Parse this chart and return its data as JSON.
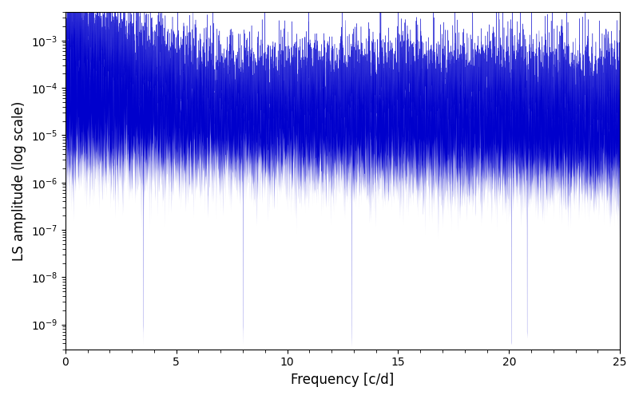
{
  "xlabel": "Frequency [c/d]",
  "ylabel": "LS amplitude (log scale)",
  "xlim": [
    0,
    25
  ],
  "ylim": [
    3e-10,
    0.004
  ],
  "line_color": "#0000cc",
  "background_color": "#ffffff",
  "figsize": [
    8.0,
    5.0
  ],
  "dpi": 100,
  "seed": 7777,
  "n_points": 8000,
  "freq_max": 25.0,
  "noise_std": 1.2
}
